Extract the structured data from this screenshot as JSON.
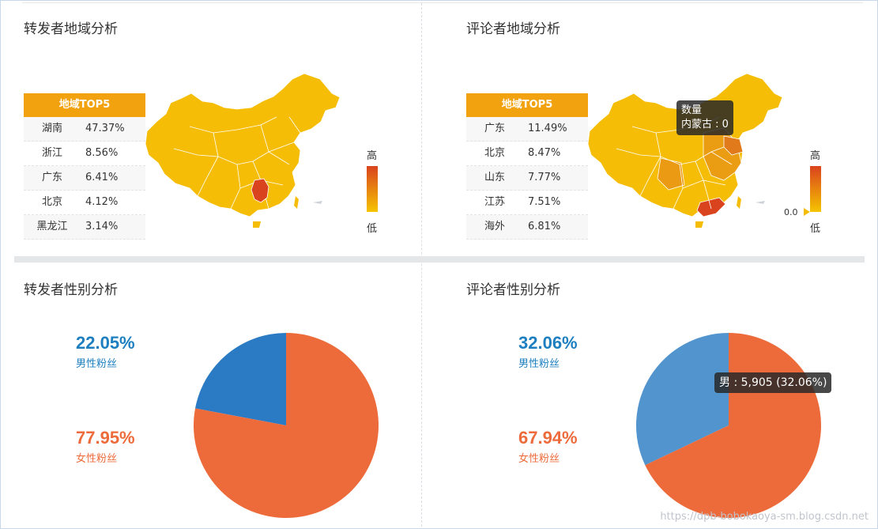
{
  "panels": {
    "repost_region_title": "转发者地域分析",
    "comment_region_title": "评论者地域分析",
    "repost_gender_title": "转发者性别分析",
    "comment_gender_title": "评论者性别分析"
  },
  "repost_top5": {
    "header": "地域TOP5",
    "rows": [
      {
        "name": "湖南",
        "value": "47.37%"
      },
      {
        "name": "浙江",
        "value": "8.56%"
      },
      {
        "name": "广东",
        "value": "6.41%"
      },
      {
        "name": "北京",
        "value": "4.12%"
      },
      {
        "name": "黑龙江",
        "value": "3.14%"
      }
    ]
  },
  "comment_top5": {
    "header": "地域TOP5",
    "rows": [
      {
        "name": "广东",
        "value": "11.49%"
      },
      {
        "name": "北京",
        "value": "8.47%"
      },
      {
        "name": "山东",
        "value": "7.77%"
      },
      {
        "name": "江苏",
        "value": "7.51%"
      },
      {
        "name": "海外",
        "value": "6.81%"
      }
    ]
  },
  "legend": {
    "high": "高",
    "low": "低",
    "min_value": "0.0"
  },
  "map_tooltip": {
    "title": "数量",
    "line": "内蒙古 : 0"
  },
  "repost_gender": {
    "male_pct": "22.05%",
    "male_label": "男性粉丝",
    "female_pct": "77.95%",
    "female_label": "女性粉丝",
    "male_fraction": 0.2205
  },
  "comment_gender": {
    "male_pct": "32.06%",
    "male_label": "男性粉丝",
    "female_pct": "67.94%",
    "female_label": "女性粉丝",
    "male_fraction": 0.3206,
    "tooltip": "男 : 5,905 (32.06%)"
  },
  "colors": {
    "male": "#2b7bc4",
    "male_light": "#5294ce",
    "female": "#ed6b3a",
    "map_base": "#f5bd05",
    "map_high": "#d9431e",
    "header": "#f2a20f"
  },
  "watermark": "https://dpb-bobokaoya-sm.blog.csdn.net"
}
